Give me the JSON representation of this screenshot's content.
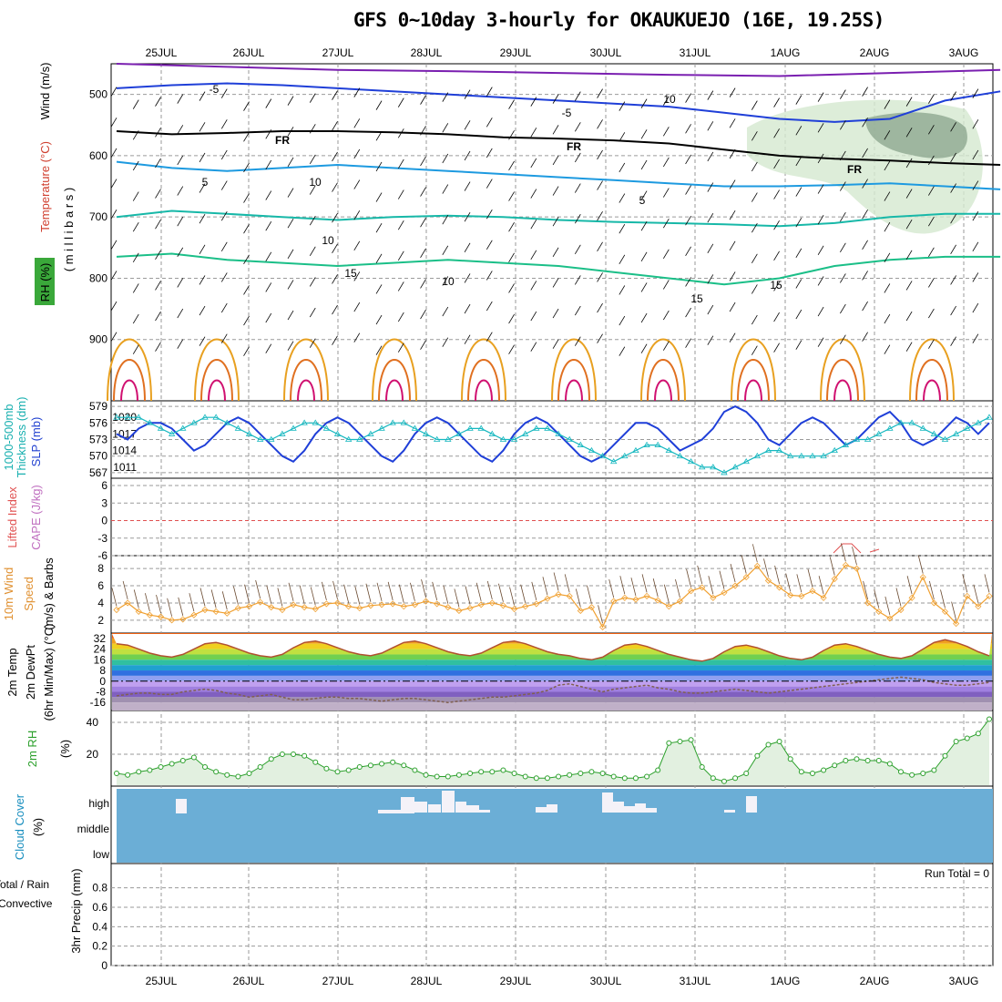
{
  "title": "GFS 0~10day 3-hourly for OKAUKUEJO (16E, 19.25S)",
  "dates": [
    "25JUL",
    "26JUL",
    "27JUL",
    "28JUL",
    "29JUL",
    "30JUL",
    "31JUL",
    "1AUG",
    "2AUG",
    "3AUG"
  ],
  "colors": {
    "grid": "#9a9a9a",
    "temp_purple": "#7a1fb0",
    "temp_blue": "#1f3fd8",
    "temp_lightblue": "#1d9ae0",
    "temp_teal": "#17b8a8",
    "temp_green": "#1bbf88",
    "temp_orange": "#e8a020",
    "temp_dark_orange": "#e07020",
    "temp_magenta": "#d01070",
    "cloud_bg": "#6baed6",
    "rh_fill": "#e2f0e0",
    "rh_line": "#2ca02c",
    "wind_line": "#f0a030",
    "slp_line": "#1f3fd8",
    "thick_line": "#17b8c0"
  },
  "chart_data": [
    {
      "panel": "upper_air",
      "type": "contour",
      "ylabel_left": [
        "Wind (m/s)",
        "Temperature (°C)",
        "RH (%)"
      ],
      "ylabel_right": "( m i l l i b a r s )",
      "yticks": [
        500,
        600,
        700,
        800,
        900
      ],
      "ylim": [
        1000,
        450
      ],
      "contour_labels": [
        "-5",
        "-5",
        "10",
        "FR",
        "FR",
        "FR",
        "5",
        "5",
        "10",
        "15",
        "15",
        "15",
        "10",
        "10"
      ],
      "isotherms": [
        {
          "label": "-5",
          "color": "temp_blue",
          "x": [
            0,
            5,
            10,
            15,
            20,
            25,
            30,
            35,
            40,
            45,
            50,
            55,
            60,
            65,
            70,
            75,
            80
          ],
          "p": [
            490,
            485,
            482,
            485,
            490,
            495,
            500,
            505,
            510,
            515,
            520,
            530,
            540,
            545,
            540,
            510,
            495
          ]
        },
        {
          "label": "10",
          "color": "temp_purple",
          "x": [
            0,
            10,
            20,
            30,
            40,
            50,
            60,
            70,
            80
          ],
          "p": [
            450,
            455,
            460,
            462,
            465,
            468,
            470,
            465,
            460
          ]
        },
        {
          "label": "FR",
          "color": "black",
          "x": [
            0,
            5,
            10,
            15,
            20,
            25,
            30,
            35,
            40,
            45,
            50,
            55,
            60,
            65,
            70,
            75,
            80
          ],
          "p": [
            560,
            565,
            563,
            560,
            560,
            562,
            565,
            570,
            572,
            575,
            580,
            590,
            600,
            605,
            608,
            612,
            615
          ]
        },
        {
          "label": "5",
          "color": "temp_lightblue",
          "x": [
            0,
            5,
            10,
            15,
            20,
            25,
            30,
            35,
            40,
            45,
            50,
            55,
            60,
            65,
            70,
            75,
            80
          ],
          "p": [
            610,
            620,
            625,
            620,
            615,
            620,
            625,
            630,
            635,
            640,
            645,
            650,
            650,
            648,
            645,
            650,
            655
          ]
        },
        {
          "label": "10",
          "color": "temp_teal",
          "x": [
            0,
            5,
            10,
            15,
            20,
            25,
            30,
            35,
            40,
            45,
            50,
            55,
            60,
            65,
            70,
            75,
            80
          ],
          "p": [
            700,
            690,
            695,
            700,
            705,
            700,
            698,
            700,
            705,
            708,
            710,
            712,
            715,
            710,
            700,
            695,
            695
          ]
        },
        {
          "label": "15",
          "color": "temp_green",
          "x": [
            0,
            5,
            10,
            15,
            20,
            25,
            30,
            35,
            40,
            45,
            50,
            55,
            60,
            65,
            70,
            75,
            80
          ],
          "p": [
            765,
            760,
            770,
            775,
            780,
            775,
            770,
            775,
            780,
            790,
            800,
            810,
            800,
            780,
            770,
            765,
            765
          ]
        }
      ]
    },
    {
      "panel": "slp_thickness",
      "type": "line",
      "ylabel": [
        "1000-500mb",
        "Thickness (dm)",
        "SLP (mb)"
      ],
      "left_ticks": [
        567,
        570,
        573,
        576,
        579
      ],
      "right_ticks": [
        1011,
        1014,
        1017,
        1020
      ],
      "series": [
        {
          "name": "SLP (mb)",
          "color": "slp_line",
          "axis": "right",
          "values": [
            1017,
            1016,
            1018,
            1019,
            1019,
            1018,
            1016,
            1014,
            1015,
            1017,
            1019,
            1020,
            1019,
            1017,
            1015,
            1013,
            1012,
            1014,
            1017,
            1019,
            1020,
            1019,
            1017,
            1015,
            1013,
            1012,
            1014,
            1017,
            1019,
            1020,
            1019,
            1017,
            1015,
            1013,
            1012,
            1014,
            1017,
            1019,
            1020,
            1019,
            1017,
            1015,
            1013,
            1012,
            1013,
            1015,
            1017,
            1019,
            1019,
            1018,
            1016,
            1014,
            1015,
            1016,
            1018,
            1021,
            1022,
            1021,
            1019,
            1016,
            1015,
            1017,
            1019,
            1020,
            1019,
            1017,
            1015,
            1016,
            1018,
            1020,
            1021,
            1019,
            1016,
            1015,
            1016,
            1018,
            1020,
            1019,
            1017,
            1019
          ]
        },
        {
          "name": "1000-500mb Thickness (dm)",
          "color": "thick_line",
          "axis": "left",
          "values": [
            577,
            577,
            577,
            576,
            575,
            574,
            575,
            576,
            577,
            577,
            576,
            575,
            574,
            573,
            573,
            574,
            575,
            576,
            576,
            575,
            574,
            573,
            573,
            574,
            575,
            576,
            576,
            575,
            574,
            573,
            573,
            574,
            575,
            575,
            574,
            573,
            573,
            574,
            575,
            575,
            574,
            573,
            572,
            571,
            570,
            569,
            570,
            571,
            572,
            572,
            571,
            570,
            569,
            568,
            568,
            567,
            568,
            569,
            570,
            571,
            571,
            570,
            570,
            570,
            570,
            571,
            572,
            573,
            573,
            574,
            575,
            576,
            576,
            575,
            574,
            573,
            574,
            575,
            576,
            577
          ]
        }
      ]
    },
    {
      "panel": "stability",
      "type": "line",
      "ylabel": [
        "Lifted Index",
        "CAPE (J/kg)"
      ],
      "left_ticks": [
        "6",
        "3",
        "0",
        "-3",
        "-6"
      ],
      "ylim": [
        6,
        -6
      ]
    },
    {
      "panel": "wind10m",
      "type": "line",
      "ylabel": [
        "10m Wind",
        "Speed",
        "(m/s) & Barbs"
      ],
      "left_ticks": [
        2,
        4,
        6,
        8
      ],
      "series": [
        {
          "name": "10m Wind Speed",
          "color": "wind_line",
          "values": [
            3.2,
            4.0,
            3.0,
            2.6,
            2.4,
            2.0,
            2.1,
            2.6,
            3.2,
            3.0,
            2.8,
            3.4,
            3.6,
            4.1,
            3.5,
            3.2,
            3.8,
            3.5,
            3.3,
            3.9,
            4.0,
            3.6,
            3.4,
            3.7,
            3.8,
            3.9,
            3.6,
            3.8,
            4.2,
            3.9,
            3.5,
            3.1,
            3.4,
            3.8,
            4.0,
            3.7,
            3.3,
            3.6,
            3.9,
            4.5,
            5.0,
            4.8,
            3.1,
            3.5,
            1.2,
            4.2,
            4.6,
            4.4,
            4.8,
            4.3,
            3.6,
            4.2,
            5.4,
            5.8,
            4.6,
            5.2,
            6.0,
            7.0,
            8.3,
            6.6,
            5.8,
            4.9,
            4.8,
            5.4,
            4.6,
            6.8,
            8.4,
            8.0,
            4.0,
            3.0,
            2.2,
            3.2,
            4.6,
            7.0,
            4.0,
            3.0,
            1.6,
            4.8,
            3.6,
            4.8
          ]
        }
      ]
    },
    {
      "panel": "temp2m",
      "type": "area",
      "ylabel": [
        "2m Temp",
        "2m DewPt",
        "(6hr Min/Max) (°C)"
      ],
      "left_ticks": [
        -16,
        -8,
        0,
        8,
        16,
        24,
        32
      ],
      "series": [
        {
          "name": "2m Temp",
          "color": "#b05030",
          "values": [
            28,
            27,
            24,
            21,
            19,
            18,
            20,
            24,
            28,
            29,
            27,
            24,
            21,
            19,
            18,
            20,
            25,
            29,
            30,
            28,
            25,
            22,
            20,
            19,
            21,
            25,
            29,
            30,
            28,
            25,
            22,
            20,
            19,
            21,
            25,
            29,
            30,
            28,
            25,
            22,
            20,
            19,
            17,
            16,
            18,
            23,
            27,
            28,
            26,
            23,
            20,
            18,
            16,
            15,
            17,
            22,
            26,
            27,
            25,
            22,
            19,
            17,
            16,
            18,
            23,
            27,
            28,
            26,
            23,
            20,
            18,
            17,
            19,
            24,
            29,
            31,
            29,
            26,
            22,
            19
          ]
        },
        {
          "name": "2m DewPt",
          "color": "#806050",
          "values": [
            -11,
            -10,
            -9,
            -9,
            -10,
            -10,
            -8,
            -7,
            -6,
            -7,
            -9,
            -10,
            -12,
            -11,
            -10,
            -12,
            -14,
            -14,
            -13,
            -12,
            -12,
            -13,
            -13,
            -14,
            -15,
            -14,
            -13,
            -13,
            -14,
            -15,
            -16,
            -15,
            -14,
            -13,
            -12,
            -12,
            -11,
            -10,
            -9,
            -7,
            -3,
            -2,
            -4,
            -6,
            -8,
            -6,
            -5,
            -4,
            -3,
            -5,
            -6,
            -8,
            -9,
            -9,
            -8,
            -7,
            -6,
            -7,
            -8,
            -9,
            -8,
            -7,
            -6,
            -5,
            -4,
            -3,
            -2,
            -1,
            0,
            1,
            2,
            3,
            2,
            1,
            -1,
            -2,
            -3,
            -3,
            -2,
            -1
          ]
        }
      ]
    },
    {
      "panel": "rh2m",
      "type": "area",
      "ylabel": [
        "2m RH",
        "(%)"
      ],
      "left_ticks": [
        20,
        40
      ],
      "series": [
        {
          "name": "2m RH",
          "color": "rh_line",
          "values": [
            8,
            7,
            9,
            10,
            12,
            14,
            16,
            18,
            12,
            9,
            7,
            6,
            8,
            12,
            17,
            20,
            20,
            19,
            15,
            11,
            9,
            10,
            12,
            13,
            14,
            15,
            13,
            10,
            7,
            6,
            6,
            7,
            8,
            9,
            9,
            10,
            8,
            6,
            5,
            5,
            6,
            7,
            8,
            9,
            8,
            6,
            5,
            5,
            6,
            10,
            27,
            28,
            29,
            12,
            5,
            3,
            5,
            8,
            19,
            26,
            28,
            17,
            9,
            8,
            10,
            13,
            16,
            17,
            16,
            16,
            14,
            9,
            7,
            8,
            10,
            19,
            28,
            30,
            33,
            42
          ]
        }
      ]
    },
    {
      "panel": "cloud",
      "type": "bar",
      "ylabel": [
        "Cloud Cover",
        "(%)"
      ],
      "left_ticks": [
        "high",
        "middle",
        "low"
      ]
    },
    {
      "panel": "precip",
      "type": "bar",
      "ylabel": [
        "Total / Rain",
        "Convective",
        "3hr Precip (mm)"
      ],
      "left_ticks": [
        "0",
        "0.2",
        "0.4",
        "0.6",
        "0.8"
      ],
      "ylim": [
        0,
        1
      ],
      "annotation": "Run Total = 0",
      "values": []
    }
  ]
}
